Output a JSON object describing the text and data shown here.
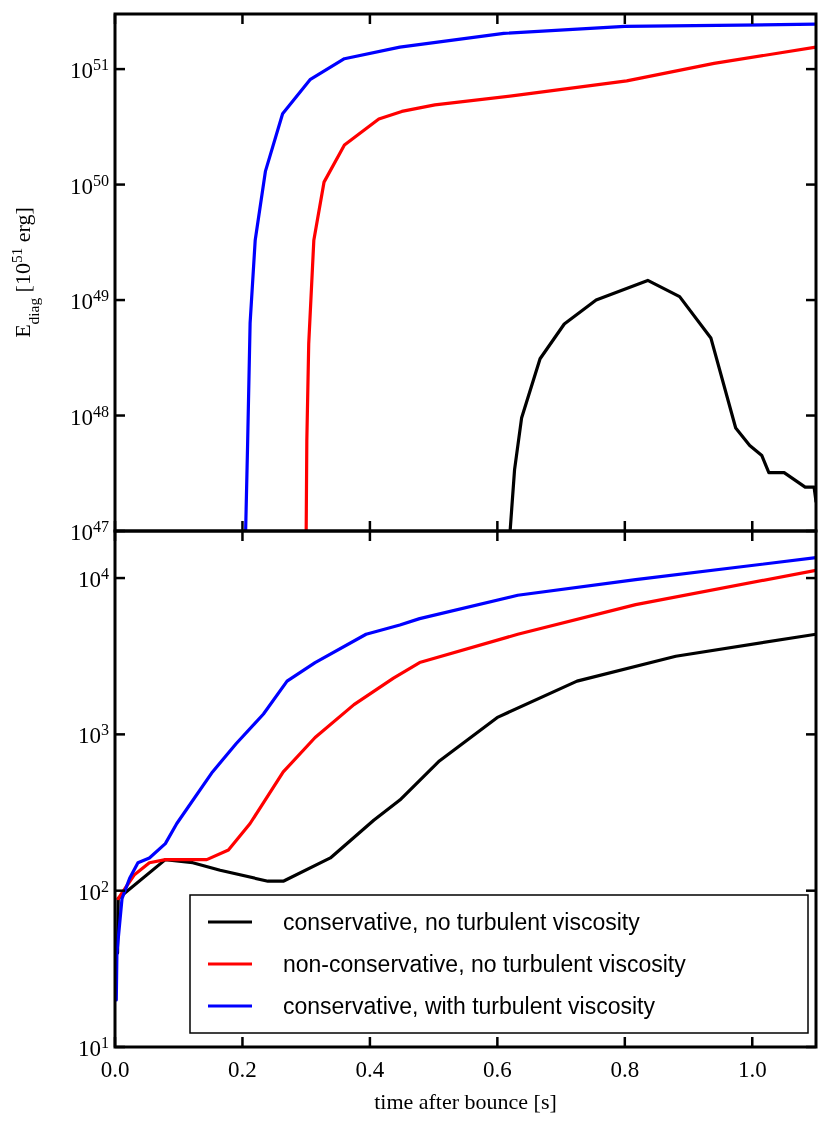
{
  "chart_data": [
    {
      "type": "line",
      "ylabel": "E$_{diag}$ [10$^{51}$ erg]",
      "log": true,
      "tick_labels": "y",
      "xlim": [
        0,
        1.1
      ],
      "xticks": [
        0,
        0.2,
        0.4,
        0.6,
        0.8,
        1.0
      ],
      "ylim": [
        1e+47,
        3e+51
      ],
      "yticks": [
        {
          "value": 1e+47,
          "label": "10$^{47}$"
        },
        {
          "value": 1e+48,
          "label": "10$^{48}$"
        },
        {
          "value": 1e+49,
          "label": "10$^{49}$"
        },
        {
          "value": 1e+50,
          "label": "10$^{50}$"
        },
        {
          "value": 1e+51,
          "label": "10$^{51}$"
        }
      ],
      "series": [
        {
          "color": "#000000",
          "x": [
            0.62,
            0.627,
            0.638,
            0.667,
            0.705,
            0.755,
            0.836,
            0.886,
            0.935,
            0.974,
            0.996,
            1.015,
            1.026,
            1.05,
            1.083,
            1.097,
            1.1
          ],
          "values": [
            1e+47,
            3.4e+47,
            9.5e+47,
            3.1e+48,
            6.2e+48,
            1e+49,
            1.48e+49,
            1.07e+49,
            4.7e+48,
            7.8e+47,
            5.5e+47,
            4.5e+47,
            3.2e+47,
            3.2e+47,
            2.4e+47,
            2.4e+47,
            1.8e+47
          ]
        },
        {
          "color": "#ff0000",
          "x": [
            0.3,
            0.301,
            0.304,
            0.312,
            0.328,
            0.36,
            0.414,
            0.45,
            0.502,
            0.638,
            0.803,
            0.94,
            1.1
          ],
          "values": [
            1e+47,
            6e+47,
            4.2e+48,
            3.3e+49,
            1.05e+50,
            2.2e+50,
            3.7e+50,
            4.3e+50,
            4.9e+50,
            6e+50,
            7.9e+50,
            1.12e+51,
            1.55e+51
          ]
        },
        {
          "color": "#0000ff",
          "x": [
            0.205,
            0.208,
            0.212,
            0.22,
            0.236,
            0.263,
            0.306,
            0.36,
            0.447,
            0.61,
            0.8,
            1.1
          ],
          "values": [
            1e+47,
            5.4e+47,
            6.3e+48,
            3.3e+49,
            1.3e+50,
            4.1e+50,
            8.1e+50,
            1.23e+51,
            1.55e+51,
            2.04e+51,
            2.34e+51,
            2.45e+51
          ]
        }
      ]
    },
    {
      "type": "line",
      "xlabel": "time after bounce [s]",
      "log": true,
      "legend": "bottom right",
      "xlim": [
        0,
        1.1
      ],
      "xticks": [
        {
          "value": 0,
          "label": "0.0"
        },
        {
          "value": 0.2,
          "label": "0.2"
        },
        {
          "value": 0.4,
          "label": "0.4"
        },
        {
          "value": 0.6,
          "label": "0.6"
        },
        {
          "value": 0.8,
          "label": "0.8"
        },
        {
          "value": 1.0,
          "label": "1.0"
        }
      ],
      "ylim": [
        10,
        20000
      ],
      "yticks": [
        {
          "value": 10,
          "label": "10$^{1}$"
        },
        {
          "value": 100,
          "label": "10$^{2}$"
        },
        {
          "value": 1000,
          "label": "10$^{3}$"
        },
        {
          "value": 10000,
          "label": "10$^{4}$"
        }
      ],
      "series": [
        {
          "name": "conservative, no turbulent viscosity",
          "color": "#000000",
          "x": [
            0.004,
            0.005,
            0.03,
            0.054,
            0.079,
            0.122,
            0.165,
            0.24,
            0.264,
            0.338,
            0.406,
            0.447,
            0.509,
            0.601,
            0.725,
            0.88,
            1.1
          ],
          "values": [
            40,
            89,
            null,
            null,
            158,
            151,
            135,
            115,
            115,
            162,
            282,
            380,
            676,
            1290,
            2190,
            3160,
            4370
          ]
        },
        {
          "name": "non-conservative, no turbulent viscosity",
          "color": "#ff0000",
          "x": [
            0.005,
            0.03,
            0.054,
            0.079,
            0.144,
            0.178,
            0.212,
            0.264,
            0.314,
            0.375,
            0.437,
            0.478,
            0.632,
            0.817,
            1.1
          ],
          "values": [
            89,
            126,
            151,
            158,
            158,
            182,
            269,
            575,
            955,
            1550,
            2290,
            2880,
            4370,
            6760,
            11200
          ]
        },
        {
          "name": "conservative, with turbulent viscosity",
          "color": "#0000ff",
          "x": [
            0.002,
            0.003,
            0.011,
            0.023,
            0.036,
            0.054,
            0.079,
            0.097,
            0.153,
            0.19,
            0.233,
            0.27,
            0.314,
            0.394,
            0.447,
            0.478,
            0.632,
            0.817,
            1.1
          ],
          "values": [
            20,
            40,
            89,
            120,
            151,
            162,
            200,
            269,
            575,
            871,
            1350,
            2190,
            2880,
            4370,
            5010,
            5500,
            7760,
            9770,
            13500
          ]
        }
      ]
    }
  ]
}
